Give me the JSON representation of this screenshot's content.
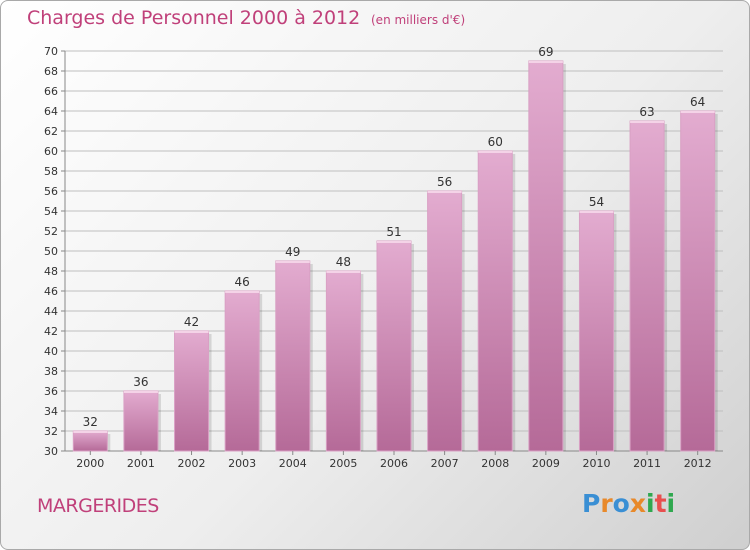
{
  "header": {
    "title": "Charges de Personnel 2000 à 2012",
    "subtitle": "(en milliers d'€)"
  },
  "footer": {
    "commune": "MARGERIDES",
    "logo_letters": [
      {
        "ch": "P",
        "color": "#3a8fd4"
      },
      {
        "ch": "r",
        "color": "#e8892a"
      },
      {
        "ch": "o",
        "color": "#3a8fd4"
      },
      {
        "ch": "x",
        "color": "#e8892a"
      },
      {
        "ch": "i",
        "color": "#2fa84f"
      },
      {
        "ch": "t",
        "color": "#e84f4f"
      },
      {
        "ch": "i",
        "color": "#2fa84f"
      }
    ]
  },
  "colors": {
    "bar": "#c478a6",
    "bar_light": "#e0a8cb",
    "accent": "#c0407a",
    "grid": "#bfbfbf"
  },
  "chart_data": {
    "type": "bar",
    "title": "Charges de Personnel 2000 à 2012",
    "subtitle": "(en milliers d'€)",
    "categories": [
      "2000",
      "2001",
      "2002",
      "2003",
      "2004",
      "2005",
      "2006",
      "2007",
      "2008",
      "2009",
      "2010",
      "2011",
      "2012"
    ],
    "values": [
      32,
      36,
      42,
      46,
      49,
      48,
      51,
      56,
      60,
      69,
      54,
      63,
      64
    ],
    "ylim": [
      30,
      70
    ],
    "ytick_step": 2,
    "grid": true,
    "data_labels": true
  }
}
